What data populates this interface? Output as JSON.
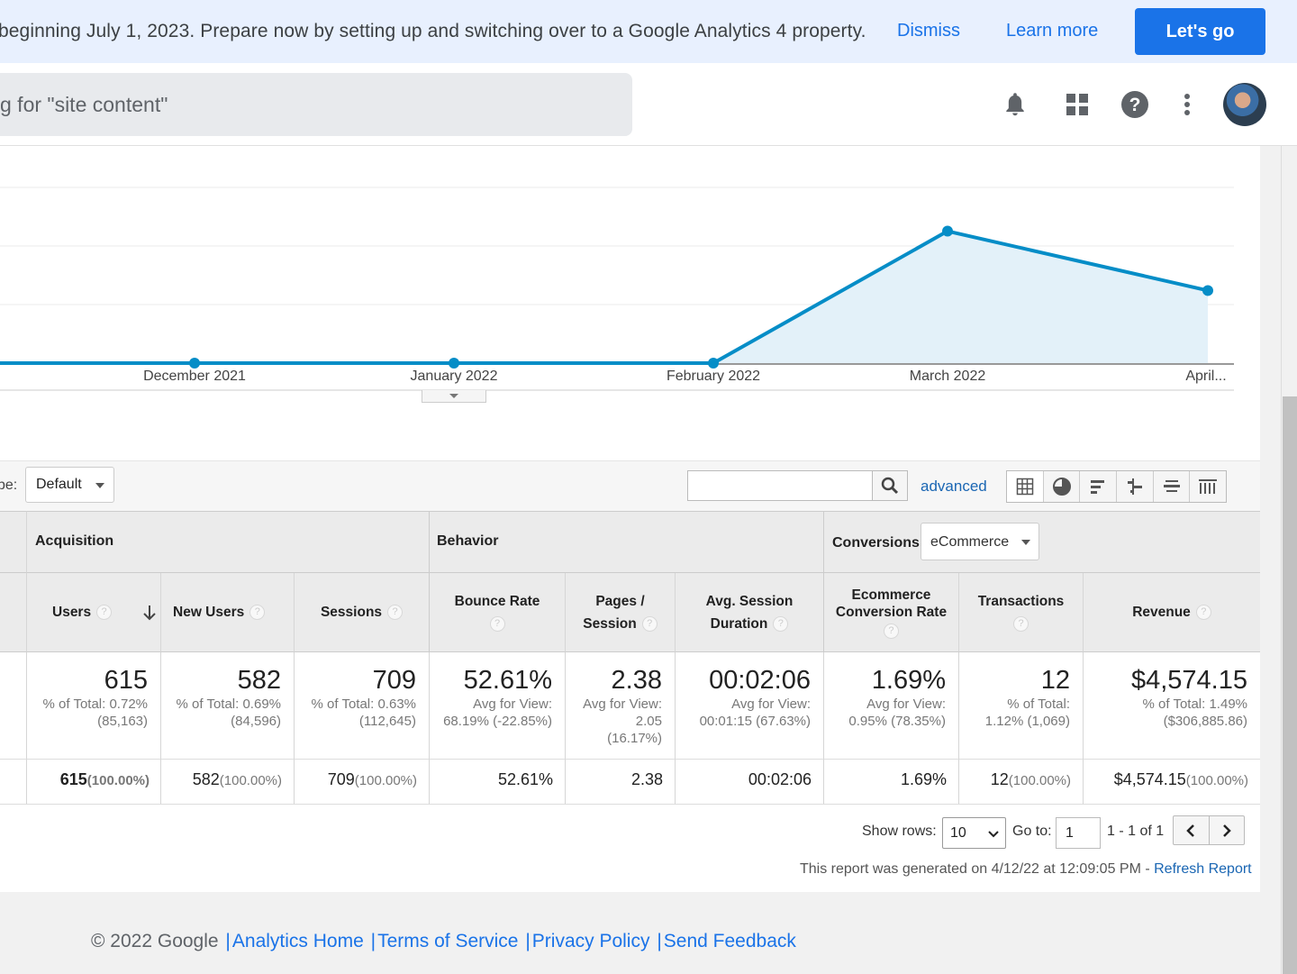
{
  "banner": {
    "text": "beginning July 1, 2023. Prepare now by setting up and switching over to a Google Analytics 4 property.",
    "dismiss": "Dismiss",
    "learn_more": "Learn more",
    "lets_go": "Let's go"
  },
  "header": {
    "search_placeholder": "g for \"site content\"",
    "icons": [
      "bell-icon",
      "apps-grid-icon",
      "help-icon",
      "more-vert-icon"
    ]
  },
  "chart_data": {
    "type": "area",
    "x": [
      "December 2021",
      "January 2022",
      "February 2022",
      "March 2022",
      "April..."
    ],
    "series": [
      {
        "values": [
          0,
          0,
          0,
          2,
          1.1
        ],
        "color": "#058dc7"
      }
    ],
    "ylim": [
      0,
      2.4
    ],
    "grid": true,
    "left_point": 0
  },
  "toolbar": {
    "type_label": "pe:",
    "type_value": "Default",
    "advanced": "advanced",
    "view_icons": [
      "table-view-icon",
      "pie-view-icon",
      "performance-view-icon",
      "comparison-view-icon",
      "term-cloud-icon",
      "pivot-view-icon"
    ]
  },
  "table": {
    "groups": {
      "acquisition": "Acquisition",
      "behavior": "Behavior",
      "conversions": "Conversions",
      "conversions_select": "eCommerce"
    },
    "columns": {
      "users": "Users",
      "new_users": "New Users",
      "sessions": "Sessions",
      "bounce_rate": "Bounce Rate",
      "pages_session_1": "Pages /",
      "pages_session_2": "Session",
      "avg_dur_1": "Avg. Session",
      "avg_dur_2": "Duration",
      "ecom_1": "Ecommerce",
      "ecom_2": "Conversion Rate",
      "transactions": "Transactions",
      "revenue": "Revenue"
    },
    "summary": {
      "users": {
        "value": "615",
        "l1": "% of Total: 0.72%",
        "l2": "(85,163)"
      },
      "new_users": {
        "value": "582",
        "l1": "% of Total: 0.69%",
        "l2": "(84,596)"
      },
      "sessions": {
        "value": "709",
        "l1": "% of Total: 0.63%",
        "l2": "(112,645)"
      },
      "bounce_rate": {
        "value": "52.61%",
        "l1": "Avg for View:",
        "l2": "68.19% (-22.85%)"
      },
      "pages_session": {
        "value": "2.38",
        "l1": "Avg for View:",
        "l2": "2.05",
        "l3": "(16.17%)"
      },
      "avg_duration": {
        "value": "00:02:06",
        "l1": "Avg for View:",
        "l2": "00:01:15 (67.63%)"
      },
      "ecom_rate": {
        "value": "1.69%",
        "l1": "Avg for View:",
        "l2": "0.95% (78.35%)"
      },
      "transactions": {
        "value": "12",
        "l1": "% of Total:",
        "l2": "1.12% (1,069)"
      },
      "revenue": {
        "value": "$4,574.15",
        "l1": "% of Total: 1.49%",
        "l2": "($306,885.86)"
      }
    },
    "row": {
      "users": "615",
      "users_pct": "(100.00%)",
      "new_users": "582",
      "new_users_pct": "(100.00%)",
      "sessions": "709",
      "sessions_pct": "(100.00%)",
      "bounce_rate": "52.61%",
      "pages_session": "2.38",
      "avg_duration": "00:02:06",
      "ecom_rate": "1.69%",
      "transactions": "12",
      "transactions_pct": "(100.00%)",
      "revenue": "$4,574.15",
      "revenue_pct": "(100.00%)"
    }
  },
  "pager": {
    "show_rows": "Show rows:",
    "rows_value": "10",
    "goto": "Go to:",
    "goto_value": "1",
    "range": "1 - 1 of 1",
    "generated": "This report was generated on 4/12/22 at 12:09:05 PM - ",
    "refresh": "Refresh Report"
  },
  "footer": {
    "copyright": "© 2022 Google",
    "links": [
      "Analytics Home",
      "Terms of Service",
      "Privacy Policy",
      "Send Feedback"
    ]
  }
}
